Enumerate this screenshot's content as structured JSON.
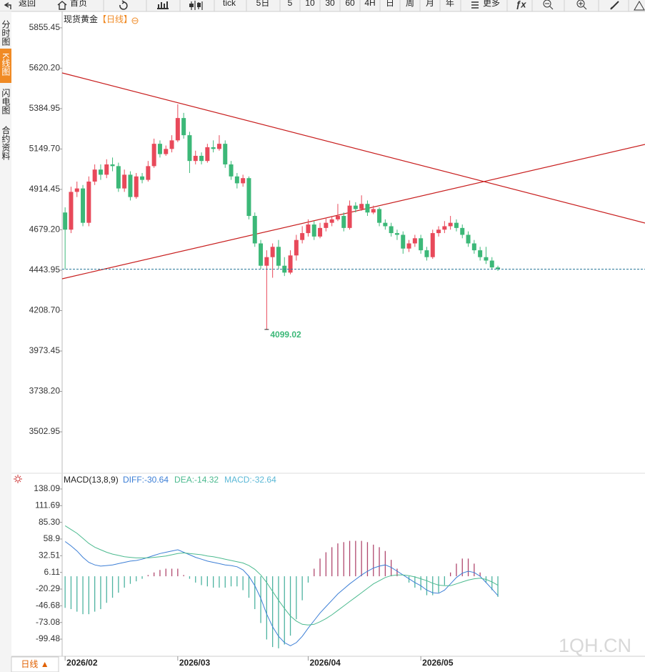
{
  "toolbar": {
    "items": [
      "返回",
      "首页",
      "tick",
      "5日",
      "5",
      "10",
      "30",
      "60",
      "4H",
      "日",
      "周",
      "月",
      "年",
      "更多"
    ]
  },
  "side_tabs": [
    "分时图",
    "K线图",
    "闪电图",
    "合约资料"
  ],
  "period_button": "日线 ▲",
  "watermark": "1QH.CN",
  "chart_data": [
    {
      "type": "candlestick",
      "title": "现货黄金",
      "subtitle": "【日线】",
      "up_color": "#e8495a",
      "down_color": "#3cb878",
      "x": [
        "2026/02",
        null,
        null,
        null,
        null,
        null,
        null,
        null,
        null,
        null,
        null,
        null,
        null,
        null,
        null,
        null,
        null,
        null,
        null,
        "2026/03",
        null,
        null,
        null,
        null,
        null,
        null,
        null,
        null,
        null,
        null,
        null,
        null,
        null,
        null,
        null,
        null,
        null,
        null,
        null,
        null,
        null,
        "2026/04",
        null,
        null,
        null,
        null,
        null,
        null,
        null,
        null,
        null,
        null,
        null,
        null,
        null,
        null,
        null,
        null,
        null,
        null,
        "2026/05",
        null,
        null,
        null,
        null,
        null,
        null,
        null,
        null,
        null,
        null,
        null,
        null
      ],
      "candles": [
        [
          4780,
          4810,
          4450,
          4680
        ],
        [
          4680,
          4930,
          4660,
          4900
        ],
        [
          4900,
          4960,
          4870,
          4920
        ],
        [
          4920,
          4940,
          4700,
          4720
        ],
        [
          4720,
          4990,
          4700,
          4960
        ],
        [
          4960,
          5060,
          4940,
          5030
        ],
        [
          5030,
          5060,
          4970,
          5000
        ],
        [
          5000,
          5090,
          4980,
          5060
        ],
        [
          5060,
          5100,
          5020,
          5050
        ],
        [
          5050,
          5070,
          4900,
          4920
        ],
        [
          4920,
          5030,
          4900,
          5000
        ],
        [
          5000,
          5020,
          4850,
          4870
        ],
        [
          4870,
          5010,
          4860,
          4990
        ],
        [
          4990,
          5010,
          4950,
          4970
        ],
        [
          4970,
          5080,
          4960,
          5050
        ],
        [
          5050,
          5210,
          5040,
          5180
        ],
        [
          5180,
          5200,
          5100,
          5120
        ],
        [
          5120,
          5170,
          5110,
          5150
        ],
        [
          5150,
          5230,
          5130,
          5200
        ],
        [
          5200,
          5410,
          5190,
          5330
        ],
        [
          5330,
          5360,
          5210,
          5230
        ],
        [
          5230,
          5250,
          5010,
          5080
        ],
        [
          5080,
          5140,
          5060,
          5110
        ],
        [
          5110,
          5130,
          5060,
          5080
        ],
        [
          5080,
          5180,
          5070,
          5160
        ],
        [
          5160,
          5200,
          5130,
          5150
        ],
        [
          5150,
          5230,
          5140,
          5180
        ],
        [
          5180,
          5200,
          5040,
          5060
        ],
        [
          5060,
          5080,
          4970,
          4990
        ],
        [
          4990,
          5010,
          4920,
          4950
        ],
        [
          4950,
          5000,
          4930,
          4980
        ],
        [
          4980,
          4990,
          4740,
          4760
        ],
        [
          4760,
          4780,
          4580,
          4600
        ],
        [
          4600,
          4620,
          4450,
          4470
        ],
        [
          4470,
          4560,
          4099.02,
          4520
        ],
        [
          4520,
          4600,
          4400,
          4580
        ],
        [
          4580,
          4620,
          4450,
          4470
        ],
        [
          4470,
          4520,
          4410,
          4430
        ],
        [
          4430,
          4560,
          4420,
          4530
        ],
        [
          4530,
          4650,
          4500,
          4620
        ],
        [
          4620,
          4700,
          4600,
          4660
        ],
        [
          4660,
          4740,
          4640,
          4710
        ],
        [
          4710,
          4730,
          4620,
          4640
        ],
        [
          4640,
          4720,
          4630,
          4690
        ],
        [
          4690,
          4750,
          4670,
          4720
        ],
        [
          4720,
          4760,
          4700,
          4740
        ],
        [
          4740,
          4830,
          4730,
          4760
        ],
        [
          4760,
          4780,
          4670,
          4690
        ],
        [
          4690,
          4850,
          4680,
          4820
        ],
        [
          4820,
          4840,
          4780,
          4800
        ],
        [
          4800,
          4880,
          4790,
          4830
        ],
        [
          4830,
          4850,
          4760,
          4780
        ],
        [
          4780,
          4820,
          4770,
          4800
        ],
        [
          4800,
          4810,
          4700,
          4720
        ],
        [
          4720,
          4740,
          4680,
          4700
        ],
        [
          4700,
          4720,
          4640,
          4660
        ],
        [
          4660,
          4680,
          4620,
          4650
        ],
        [
          4650,
          4670,
          4540,
          4570
        ],
        [
          4570,
          4620,
          4550,
          4600
        ],
        [
          4600,
          4650,
          4580,
          4630
        ],
        [
          4630,
          4650,
          4540,
          4560
        ],
        [
          4560,
          4580,
          4500,
          4520
        ],
        [
          4520,
          4680,
          4510,
          4660
        ],
        [
          4660,
          4700,
          4640,
          4680
        ],
        [
          4680,
          4730,
          4660,
          4700
        ],
        [
          4700,
          4760,
          4680,
          4720
        ],
        [
          4720,
          4740,
          4670,
          4690
        ],
        [
          4690,
          4710,
          4630,
          4650
        ],
        [
          4650,
          4670,
          4580,
          4600
        ],
        [
          4600,
          4620,
          4540,
          4560
        ],
        [
          4560,
          4580,
          4500,
          4520
        ],
        [
          4520,
          4580,
          4480,
          4500
        ],
        [
          4500,
          4520,
          4450,
          4460
        ],
        [
          4460,
          4470,
          4440,
          4450
        ]
      ],
      "low_index": 34,
      "ylim": [
        3270,
        5934
      ],
      "yticks": [
        5855.45,
        {
          "value": 5620.2,
          "label": "5620.20"
        },
        5384.95,
        {
          "value": 5149.7,
          "label": "5149.70"
        },
        4914.45,
        {
          "value": 4679.2,
          "label": "4679.20"
        },
        4443.95,
        {
          "value": 4208.7,
          "label": "4208.70"
        },
        3973.45,
        {
          "value": 3738.2,
          "label": "3738.20"
        },
        3502.95
      ]
    },
    {
      "type": "macd",
      "title": "MACD(13,8,9)",
      "series": [
        {
          "name": "DIFF:",
          "color": "#3d7fd6",
          "values": [
            55,
            48,
            40,
            30,
            22,
            18,
            16,
            17,
            18,
            20,
            22,
            24,
            25,
            27,
            30,
            33,
            36,
            38,
            40,
            42,
            38,
            34,
            30,
            27,
            24,
            22,
            20,
            18,
            17,
            15,
            10,
            0,
            -15,
            -35,
            -60,
            -80,
            -95,
            -105,
            -110,
            -105,
            -95,
            -82,
            -70,
            -58,
            -48,
            -38,
            -28,
            -20,
            -12,
            -5,
            2,
            8,
            13,
            16,
            18,
            14,
            8,
            2,
            -4,
            -10,
            -15,
            -22,
            -26,
            -27,
            -22,
            -12,
            -2,
            5,
            8,
            6,
            0,
            -10,
            -20,
            -30.64
          ]
        },
        {
          "name": "DEA:",
          "color": "#4cba8f",
          "values": [
            80,
            74,
            68,
            60,
            52,
            46,
            42,
            38,
            35,
            33,
            31,
            30,
            29,
            29,
            29,
            30,
            31,
            32,
            34,
            36,
            37,
            36,
            35,
            34,
            32,
            31,
            29,
            27,
            25,
            23,
            21,
            17,
            11,
            2,
            -10,
            -24,
            -38,
            -51,
            -63,
            -71,
            -76,
            -77,
            -76,
            -72,
            -67,
            -61,
            -54,
            -47,
            -40,
            -33,
            -26,
            -19,
            -12,
            -7,
            -2,
            1,
            2,
            2,
            1,
            -1,
            -4,
            -7,
            -11,
            -14,
            -15,
            -15,
            -12,
            -9,
            -6,
            -4,
            -3,
            -5,
            -9,
            -14.32
          ]
        },
        {
          "name": "MACD:",
          "color": "#5bb8d6",
          "up_color": "#b0486e",
          "down_color": "#4db3a0",
          "values": [
            -50,
            -52,
            -56,
            -60,
            -60,
            -56,
            -52,
            -42,
            -34,
            -26,
            -18,
            -12,
            -8,
            -4,
            2,
            6,
            10,
            12,
            12,
            12,
            2,
            -4,
            -10,
            -14,
            -16,
            -18,
            -18,
            -18,
            -16,
            -16,
            -22,
            -34,
            -52,
            -74,
            -100,
            -112,
            -114,
            -108,
            -94,
            -68,
            -38,
            -10,
            12,
            28,
            38,
            46,
            52,
            54,
            56,
            56,
            56,
            54,
            50,
            46,
            40,
            26,
            12,
            0,
            -10,
            -18,
            -22,
            -30,
            -30,
            -26,
            -14,
            6,
            20,
            28,
            28,
            20,
            6,
            -10,
            -22,
            -32.64
          ]
        }
      ],
      "ylim": [
        -126.6,
        162.98
      ],
      "yticks": [
        138.09,
        111.69,
        {
          "value": 85.3,
          "label": "85.30"
        },
        58.9,
        32.51,
        6.11,
        -20.29,
        -46.68,
        -73.08,
        -99.48
      ]
    }
  ]
}
